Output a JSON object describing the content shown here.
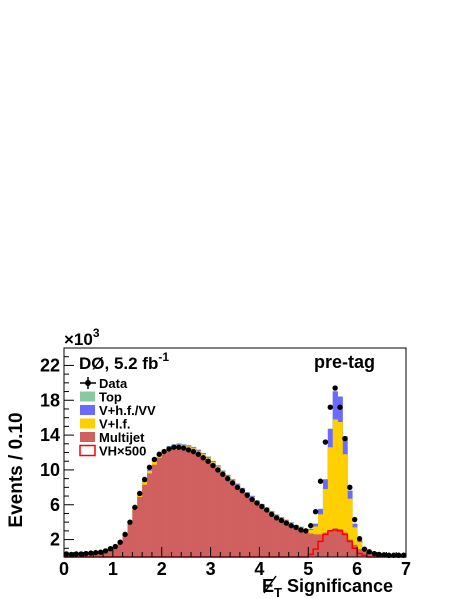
{
  "chart_data": {
    "type": "bar",
    "title": "",
    "experiment_label": "DØ, 5.2 fb",
    "experiment_label_sup": "-1",
    "selection_label": "pre-tag",
    "xlabel": "E",
    "xlabel_sub": "T",
    "xlabel_rest": " Significance",
    "ylabel": "Events / 0.10",
    "y_multiplier": "×10",
    "y_multiplier_exp": "3",
    "xlim": [
      0,
      7
    ],
    "ylim": [
      0,
      24
    ],
    "x_ticks": [
      {
        "value": 0,
        "label": "0"
      },
      {
        "value": 1,
        "label": "1"
      },
      {
        "value": 2,
        "label": "2"
      },
      {
        "value": 3,
        "label": "3"
      },
      {
        "value": 4,
        "label": "4"
      },
      {
        "value": 5,
        "label": "5"
      },
      {
        "value": 6,
        "label": "6"
      },
      {
        "value": 7,
        "label": "7"
      }
    ],
    "y_ticks": [
      {
        "value": 2,
        "label": "2"
      },
      {
        "value": 6,
        "label": "6"
      },
      {
        "value": 10,
        "label": "10"
      },
      {
        "value": 14,
        "label": "14"
      },
      {
        "value": 18,
        "label": "18"
      },
      {
        "value": 22,
        "label": "22"
      }
    ],
    "bin_width": 0.1,
    "x": [
      0.0,
      0.1,
      0.2,
      0.3,
      0.4,
      0.5,
      0.6,
      0.7,
      0.8,
      0.9,
      1.0,
      1.1,
      1.2,
      1.3,
      1.4,
      1.5,
      1.6,
      1.7,
      1.8,
      1.9,
      2.0,
      2.1,
      2.2,
      2.3,
      2.4,
      2.5,
      2.6,
      2.7,
      2.8,
      2.9,
      3.0,
      3.1,
      3.2,
      3.3,
      3.4,
      3.5,
      3.6,
      3.7,
      3.8,
      3.9,
      4.0,
      4.1,
      4.2,
      4.3,
      4.4,
      4.5,
      4.6,
      4.7,
      4.8,
      4.9,
      5.0,
      5.1,
      5.2,
      5.3,
      5.4,
      5.5,
      5.6,
      5.7,
      5.8,
      5.9,
      6.0,
      6.1,
      6.2,
      6.3,
      6.4,
      6.5,
      6.6,
      6.7,
      6.8,
      6.9
    ],
    "legend": [
      {
        "label": "Data",
        "key": "data",
        "color": "#000000"
      },
      {
        "label": "Top",
        "key": "top",
        "color": "#88c9a1"
      },
      {
        "label": "V+h.f./VV",
        "key": "vhf",
        "color": "#6a6aff"
      },
      {
        "label": "V+l.f.",
        "key": "vlf",
        "color": "#ffd000"
      },
      {
        "label": "Multijet",
        "key": "multijet",
        "color": "#d06060"
      },
      {
        "label": "VH×500",
        "key": "signal",
        "color": "#ff0000"
      }
    ],
    "series": [
      {
        "name": "Multijet",
        "key": "multijet",
        "color": "#d06060",
        "values": [
          0.3,
          0.3,
          0.3,
          0.3,
          0.3,
          0.4,
          0.4,
          0.5,
          0.6,
          0.8,
          1.1,
          1.7,
          2.6,
          3.9,
          5.4,
          6.9,
          8.3,
          9.6,
          10.6,
          11.4,
          11.8,
          12.1,
          12.3,
          12.4,
          12.3,
          12.2,
          12.0,
          11.7,
          11.3,
          10.9,
          10.4,
          9.9,
          9.4,
          8.9,
          8.4,
          7.9,
          7.4,
          6.9,
          6.5,
          6.1,
          5.7,
          5.3,
          4.9,
          4.5,
          4.2,
          3.9,
          3.6,
          3.3,
          3.1,
          2.9,
          2.7,
          2.6,
          2.6,
          2.8,
          3.1,
          3.3,
          3.2,
          2.8,
          2.0,
          1.4,
          0.9,
          0.6,
          0.4,
          0.3,
          0.25,
          0.2,
          0.2,
          0.2,
          0.2,
          0.2
        ]
      },
      {
        "name": "V+l.f.",
        "key": "vlf",
        "color": "#ffd000",
        "values": [
          0.0,
          0.0,
          0.0,
          0.0,
          0.0,
          0.0,
          0.0,
          0.0,
          0.0,
          0.0,
          0.0,
          0.1,
          0.1,
          0.1,
          0.2,
          0.2,
          0.3,
          0.3,
          0.4,
          0.4,
          0.4,
          0.5,
          0.5,
          0.5,
          0.5,
          0.5,
          0.5,
          0.5,
          0.5,
          0.5,
          0.5,
          0.5,
          0.4,
          0.4,
          0.4,
          0.4,
          0.4,
          0.4,
          0.4,
          0.3,
          0.3,
          0.3,
          0.3,
          0.3,
          0.3,
          0.3,
          0.3,
          0.3,
          0.3,
          0.2,
          0.4,
          0.9,
          2.3,
          5.0,
          9.5,
          12.5,
          12.3,
          9.0,
          4.7,
          2.0,
          0.8,
          0.3,
          0.1,
          0.1,
          0.0,
          0.0,
          0.0,
          0.0,
          0.0,
          0.0
        ]
      },
      {
        "name": "V+h.f./VV",
        "key": "vhf",
        "color": "#6a6aff",
        "values": [
          0.0,
          0.0,
          0.0,
          0.0,
          0.0,
          0.0,
          0.0,
          0.0,
          0.0,
          0.0,
          0.0,
          0.0,
          0.0,
          0.0,
          0.05,
          0.05,
          0.1,
          0.1,
          0.1,
          0.1,
          0.1,
          0.1,
          0.1,
          0.1,
          0.1,
          0.1,
          0.1,
          0.1,
          0.1,
          0.1,
          0.1,
          0.1,
          0.1,
          0.1,
          0.1,
          0.1,
          0.1,
          0.1,
          0.1,
          0.05,
          0.05,
          0.05,
          0.05,
          0.05,
          0.05,
          0.05,
          0.05,
          0.05,
          0.05,
          0.05,
          0.1,
          0.3,
          0.6,
          1.1,
          2.1,
          3.2,
          2.9,
          2.0,
          0.9,
          0.4,
          0.15,
          0.1,
          0.05,
          0.0,
          0.0,
          0.0,
          0.0,
          0.0,
          0.0,
          0.0
        ]
      },
      {
        "name": "Top",
        "key": "top",
        "color": "#88c9a1",
        "values": [
          0.0,
          0.0,
          0.0,
          0.0,
          0.0,
          0.0,
          0.0,
          0.0,
          0.0,
          0.0,
          0.0,
          0.0,
          0.0,
          0.0,
          0.05,
          0.05,
          0.05,
          0.05,
          0.05,
          0.05,
          0.05,
          0.05,
          0.05,
          0.05,
          0.05,
          0.05,
          0.05,
          0.05,
          0.05,
          0.05,
          0.05,
          0.05,
          0.05,
          0.05,
          0.05,
          0.05,
          0.05,
          0.05,
          0.05,
          0.05,
          0.05,
          0.05,
          0.05,
          0.05,
          0.05,
          0.05,
          0.05,
          0.05,
          0.05,
          0.05,
          0.05,
          0.05,
          0.05,
          0.05,
          0.05,
          0.05,
          0.05,
          0.05,
          0.05,
          0.05,
          0.05,
          0.0,
          0.0,
          0.0,
          0.0,
          0.0,
          0.0,
          0.0,
          0.0,
          0.0
        ]
      },
      {
        "name": "VH×500",
        "key": "signal",
        "color": "#ff0000",
        "values": [
          0.0,
          0.0,
          0.0,
          0.0,
          0.0,
          0.0,
          0.0,
          0.0,
          0.0,
          0.0,
          0.0,
          0.0,
          0.0,
          0.0,
          0.0,
          0.0,
          0.0,
          0.0,
          0.0,
          0.0,
          0.0,
          0.0,
          0.0,
          0.0,
          0.0,
          0.0,
          0.0,
          0.0,
          0.0,
          0.0,
          0.0,
          0.0,
          0.0,
          0.0,
          0.0,
          0.0,
          0.0,
          0.0,
          0.0,
          0.0,
          0.0,
          0.0,
          0.0,
          0.0,
          0.0,
          0.0,
          0.0,
          0.0,
          0.0,
          0.0,
          0.3,
          0.9,
          1.8,
          2.6,
          3.0,
          3.1,
          3.0,
          2.6,
          1.8,
          1.0,
          0.4,
          0.2,
          0.0,
          0.0,
          0.0,
          0.0,
          0.0,
          0.0,
          0.0,
          0.0
        ]
      },
      {
        "name": "Data",
        "key": "data",
        "color": "#000000",
        "values": [
          0.35,
          0.3,
          0.35,
          0.35,
          0.4,
          0.45,
          0.5,
          0.55,
          0.7,
          0.95,
          1.2,
          1.7,
          2.6,
          4.0,
          5.7,
          7.3,
          8.9,
          10.3,
          11.2,
          11.8,
          12.1,
          12.4,
          12.6,
          12.6,
          12.5,
          12.3,
          12.1,
          11.8,
          11.4,
          11.0,
          10.5,
          10.0,
          9.5,
          9.0,
          8.5,
          8.0,
          7.6,
          7.1,
          6.6,
          6.2,
          5.8,
          5.4,
          4.9,
          4.5,
          4.2,
          3.9,
          3.6,
          3.4,
          3.1,
          3.0,
          3.6,
          5.2,
          8.7,
          13.2,
          17.2,
          19.4,
          17.2,
          13.6,
          8.0,
          4.3,
          2.1,
          0.9,
          0.6,
          0.4,
          0.3,
          0.25,
          0.2,
          0.2,
          0.2,
          0.2
        ]
      }
    ]
  }
}
